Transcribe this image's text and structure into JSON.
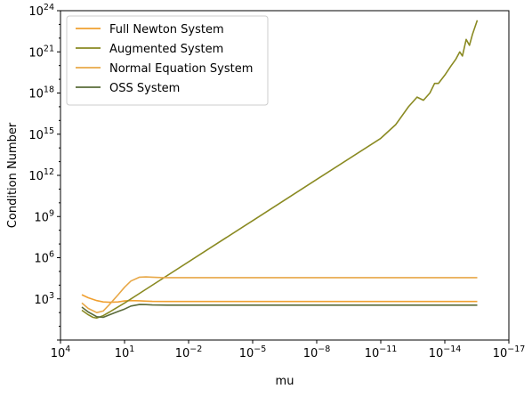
{
  "chart_data": {
    "type": "line",
    "title": "",
    "xlabel": "mu",
    "ylabel": "Condition Number",
    "x_scale": "log",
    "y_scale": "log",
    "x_inverted": true,
    "xlim": [
      10000,
      1e-17
    ],
    "ylim": [
      1,
      1e+24
    ],
    "xticks": [
      {
        "value": 10000,
        "base": "10",
        "exp": "4"
      },
      {
        "value": 10,
        "base": "10",
        "exp": "1"
      },
      {
        "value": 0.01,
        "base": "10",
        "exp": "−2"
      },
      {
        "value": 1e-05,
        "base": "10",
        "exp": "−5"
      },
      {
        "value": 1e-08,
        "base": "10",
        "exp": "−8"
      },
      {
        "value": 1e-11,
        "base": "10",
        "exp": "−11"
      },
      {
        "value": 1e-14,
        "base": "10",
        "exp": "−14"
      },
      {
        "value": 1e-17,
        "base": "10",
        "exp": "−17"
      }
    ],
    "yticks": [
      {
        "value": 1000,
        "base": "10",
        "exp": "3"
      },
      {
        "value": 1000000,
        "base": "10",
        "exp": "6"
      },
      {
        "value": 1000000000.0,
        "base": "10",
        "exp": "9"
      },
      {
        "value": 1000000000000.0,
        "base": "10",
        "exp": "12"
      },
      {
        "value": 1000000000000000.0,
        "base": "10",
        "exp": "15"
      },
      {
        "value": 1e+18,
        "base": "10",
        "exp": "18"
      },
      {
        "value": 1e+21,
        "base": "10",
        "exp": "21"
      },
      {
        "value": 1e+24,
        "base": "10",
        "exp": "24"
      }
    ],
    "grid": false,
    "legend_position": "upper-left",
    "series": [
      {
        "name": "Full Newton System",
        "color": "#f0a030",
        "x": [
          1000,
          500,
          200,
          100,
          50,
          20,
          10,
          5,
          2,
          1,
          0.5,
          0.1,
          0.01,
          0.001,
          1e-05,
          1e-08,
          1e-11,
          1e-14,
          3e-16
        ],
        "y": [
          2000,
          1200,
          750,
          600,
          560,
          600,
          700,
          750,
          720,
          680,
          650,
          640,
          640,
          640,
          640,
          640,
          640,
          640,
          640
        ]
      },
      {
        "name": "Augmented System",
        "color": "#8a8a22",
        "x": [
          1000,
          500,
          300,
          200,
          100,
          50,
          10,
          1,
          0.001,
          1e-05,
          1e-08,
          1e-11,
          2e-12,
          5e-13,
          2e-13,
          1e-13,
          5e-14,
          3e-14,
          2e-14,
          1e-14,
          5e-15,
          3e-15,
          2e-15,
          1.5e-15,
          1e-15,
          7e-16,
          5e-16,
          3e-16
        ],
        "y": [
          150,
          70,
          45,
          40,
          60,
          110,
          500,
          5000,
          5000000.0,
          500000000.0,
          500000000000.0,
          500000000000000.0,
          5000000000000000.0,
          1e+17,
          5e+17,
          3e+17,
          1e+18,
          5e+18,
          5e+18,
          2e+19,
          1e+20,
          3e+20,
          1e+21,
          5e+20,
          8e+21,
          3e+21,
          2e+22,
          2e+23
        ]
      },
      {
        "name": "Normal Equation System",
        "color": "#e8a848",
        "x": [
          1000,
          500,
          200,
          100,
          50,
          20,
          10,
          5,
          2,
          1,
          0.5,
          0.2,
          0.1,
          0.01,
          1e-05,
          1e-08,
          1e-11,
          1e-14,
          3e-16
        ],
        "y": [
          500,
          200,
          100,
          130,
          400,
          2000,
          7000,
          20000,
          38000,
          40000,
          38000,
          36000,
          35000,
          35000,
          35000,
          35000,
          35000,
          35000,
          35000
        ]
      },
      {
        "name": "OSS System",
        "color": "#5a6b3a",
        "x": [
          1000,
          500,
          200,
          100,
          50,
          20,
          10,
          5,
          2,
          1,
          0.5,
          0.1,
          0.01,
          1e-05,
          1e-08,
          1e-11,
          1e-14,
          3e-16
        ],
        "y": [
          250,
          110,
          50,
          45,
          70,
          120,
          180,
          300,
          390,
          380,
          360,
          350,
          350,
          350,
          350,
          350,
          350,
          350
        ]
      }
    ]
  }
}
